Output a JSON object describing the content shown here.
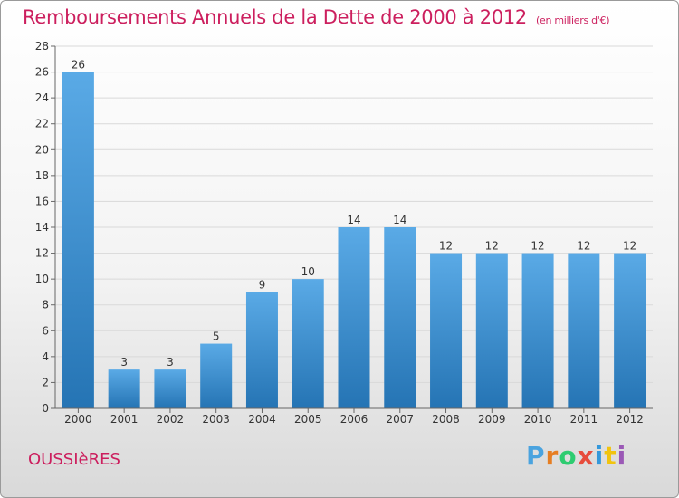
{
  "header": {
    "title": "Remboursements Annuels de la Dette de 2000 à 2012",
    "subtitle": "(en milliers d'€)"
  },
  "footer": {
    "town": "OUSSIèRES",
    "logo": "Proxiti",
    "logo_colors": [
      "#4aa3df",
      "#e67e22",
      "#2ecc71",
      "#e74c3c",
      "#3498db",
      "#f1c40f",
      "#9b59b6"
    ]
  },
  "colors": {
    "bar_top": "#5aaae6",
    "bar_bottom": "#2574b4",
    "title": "#cc1f5e",
    "grid": "#d9d9d9"
  },
  "chart_data": {
    "type": "bar",
    "categories": [
      "2000",
      "2001",
      "2002",
      "2003",
      "2004",
      "2005",
      "2006",
      "2007",
      "2008",
      "2009",
      "2010",
      "2011",
      "2012"
    ],
    "values": [
      26,
      3,
      3,
      5,
      9,
      10,
      14,
      14,
      12,
      12,
      12,
      12,
      12
    ],
    "data_labels": [
      "26",
      "3",
      "3",
      "5",
      "9",
      "10",
      "14",
      "14",
      "12",
      "12",
      "12",
      "12",
      "12"
    ],
    "title": "Remboursements Annuels de la Dette de 2000 à 2012",
    "xlabel": "",
    "ylabel": "",
    "ylim": [
      0,
      28
    ],
    "yticks": [
      0,
      2,
      4,
      6,
      8,
      10,
      12,
      14,
      16,
      18,
      20,
      22,
      24,
      26,
      28
    ],
    "grid": true,
    "legend": "none"
  }
}
